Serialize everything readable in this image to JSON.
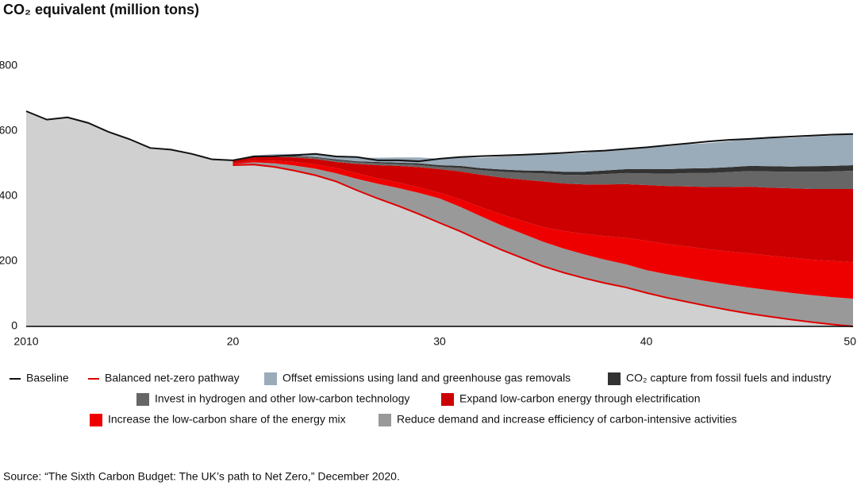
{
  "chart_data": {
    "type": "stacked-area",
    "title": "CO₂ equivalent (million tons)",
    "source": "Source: “The Sixth Carbon Budget: The UK’s path to Net Zero,” December 2020.",
    "x": [
      2010,
      2011,
      2012,
      2013,
      2014,
      2015,
      2016,
      2017,
      2018,
      2019,
      2020,
      2021,
      2022,
      2023,
      2024,
      2025,
      2026,
      2027,
      2028,
      2029,
      2030,
      2031,
      2032,
      2033,
      2034,
      2035,
      2036,
      2037,
      2038,
      2039,
      2040,
      2041,
      2042,
      2043,
      2044,
      2045,
      2046,
      2047,
      2048,
      2049,
      2050
    ],
    "xlim": [
      2010,
      2050
    ],
    "xticks": [
      2010,
      {
        "value": 2020,
        "label": "20"
      },
      {
        "value": 2030,
        "label": "30"
      },
      {
        "value": 2040,
        "label": "40"
      },
      {
        "value": 2050,
        "label": "50"
      }
    ],
    "ylim": [
      0,
      800
    ],
    "yticks": [
      0,
      200,
      400,
      600,
      800
    ],
    "base_color": "#d0d0d0",
    "series": [
      {
        "name": "Baseline",
        "type": "line",
        "color": "#111111",
        "values": [
          661,
          635,
          642,
          625,
          597,
          575,
          548,
          543,
          530,
          513,
          510,
          522,
          523,
          526,
          530,
          522,
          520,
          510,
          510,
          507,
          515,
          520,
          523,
          525,
          527,
          530,
          533,
          537,
          540,
          545,
          550,
          556,
          562,
          568,
          573,
          576,
          580,
          583,
          586,
          589,
          591
        ]
      },
      {
        "name": "Balanced net-zero pathway",
        "type": "line",
        "color": "#e00000",
        "values": [
          null,
          null,
          null,
          null,
          null,
          null,
          null,
          null,
          null,
          null,
          495,
          497,
          490,
          478,
          464,
          445,
          418,
          393,
          370,
          345,
          318,
          292,
          263,
          235,
          210,
          185,
          165,
          148,
          133,
          120,
          103,
          88,
          75,
          62,
          50,
          39,
          30,
          21,
          13,
          6,
          0
        ]
      },
      {
        "name": "Offset emissions using land and greenhouse gas removals",
        "type": "area",
        "color": "#9aabb9",
        "values": [
          null,
          null,
          null,
          null,
          null,
          null,
          null,
          null,
          null,
          null,
          2,
          3,
          5,
          6,
          8,
          9,
          11,
          13,
          16,
          18,
          20,
          26,
          32,
          40,
          46,
          52,
          55,
          58,
          61,
          64,
          67,
          70,
          74,
          77,
          80,
          83,
          86,
          88,
          91,
          93,
          96
        ]
      },
      {
        "name": "CO₂ capture from fossil fuels and industry",
        "type": "area",
        "color": "#333333",
        "values": [
          null,
          null,
          null,
          null,
          null,
          null,
          null,
          null,
          null,
          null,
          0,
          1,
          1,
          2,
          2,
          3,
          3,
          4,
          4,
          5,
          5,
          6,
          6,
          7,
          7,
          8,
          9,
          10,
          11,
          12,
          13,
          14,
          14,
          15,
          15,
          16,
          16,
          16,
          17,
          17,
          17
        ]
      },
      {
        "name": "Invest in hydrogen and other low-carbon technology",
        "type": "area",
        "color": "#666666",
        "values": [
          null,
          null,
          null,
          null,
          null,
          null,
          null,
          null,
          null,
          null,
          0,
          1,
          2,
          3,
          4,
          5,
          5,
          6,
          6,
          7,
          7,
          11,
          14,
          18,
          21,
          25,
          27,
          29,
          32,
          34,
          36,
          38,
          41,
          43,
          46,
          48,
          50,
          51,
          53,
          54,
          56
        ]
      },
      {
        "name": "Expand low-carbon energy through electrification",
        "type": "area",
        "color": "#cc0000",
        "values": [
          null,
          null,
          null,
          null,
          null,
          null,
          null,
          null,
          null,
          null,
          8,
          10,
          12,
          14,
          16,
          18,
          29,
          40,
          51,
          62,
          73,
          86,
          100,
          113,
          127,
          140,
          146,
          152,
          159,
          165,
          171,
          178,
          185,
          191,
          198,
          205,
          209,
          213,
          217,
          221,
          225
        ]
      },
      {
        "name": "Increase the low-carbon share of the energy mix",
        "type": "area",
        "color": "#ee0000",
        "values": [
          null,
          null,
          null,
          null,
          null,
          null,
          null,
          null,
          null,
          null,
          3,
          6,
          8,
          11,
          14,
          17,
          17,
          17,
          17,
          17,
          17,
          23,
          28,
          34,
          39,
          45,
          54,
          63,
          72,
          81,
          90,
          93,
          96,
          99,
          102,
          105,
          106,
          108,
          109,
          111,
          112
        ]
      },
      {
        "name": "Reduce demand and increase efficiency of carbon-intensive activities",
        "type": "area",
        "color": "#999999",
        "values": [
          null,
          null,
          null,
          null,
          null,
          null,
          null,
          null,
          null,
          null,
          2,
          7,
          11,
          16,
          20,
          25,
          35,
          45,
          55,
          65,
          75,
          75,
          75,
          75,
          75,
          75,
          74,
          73,
          72,
          71,
          70,
          72,
          74,
          76,
          78,
          80,
          81,
          82,
          83,
          84,
          85
        ]
      }
    ]
  }
}
